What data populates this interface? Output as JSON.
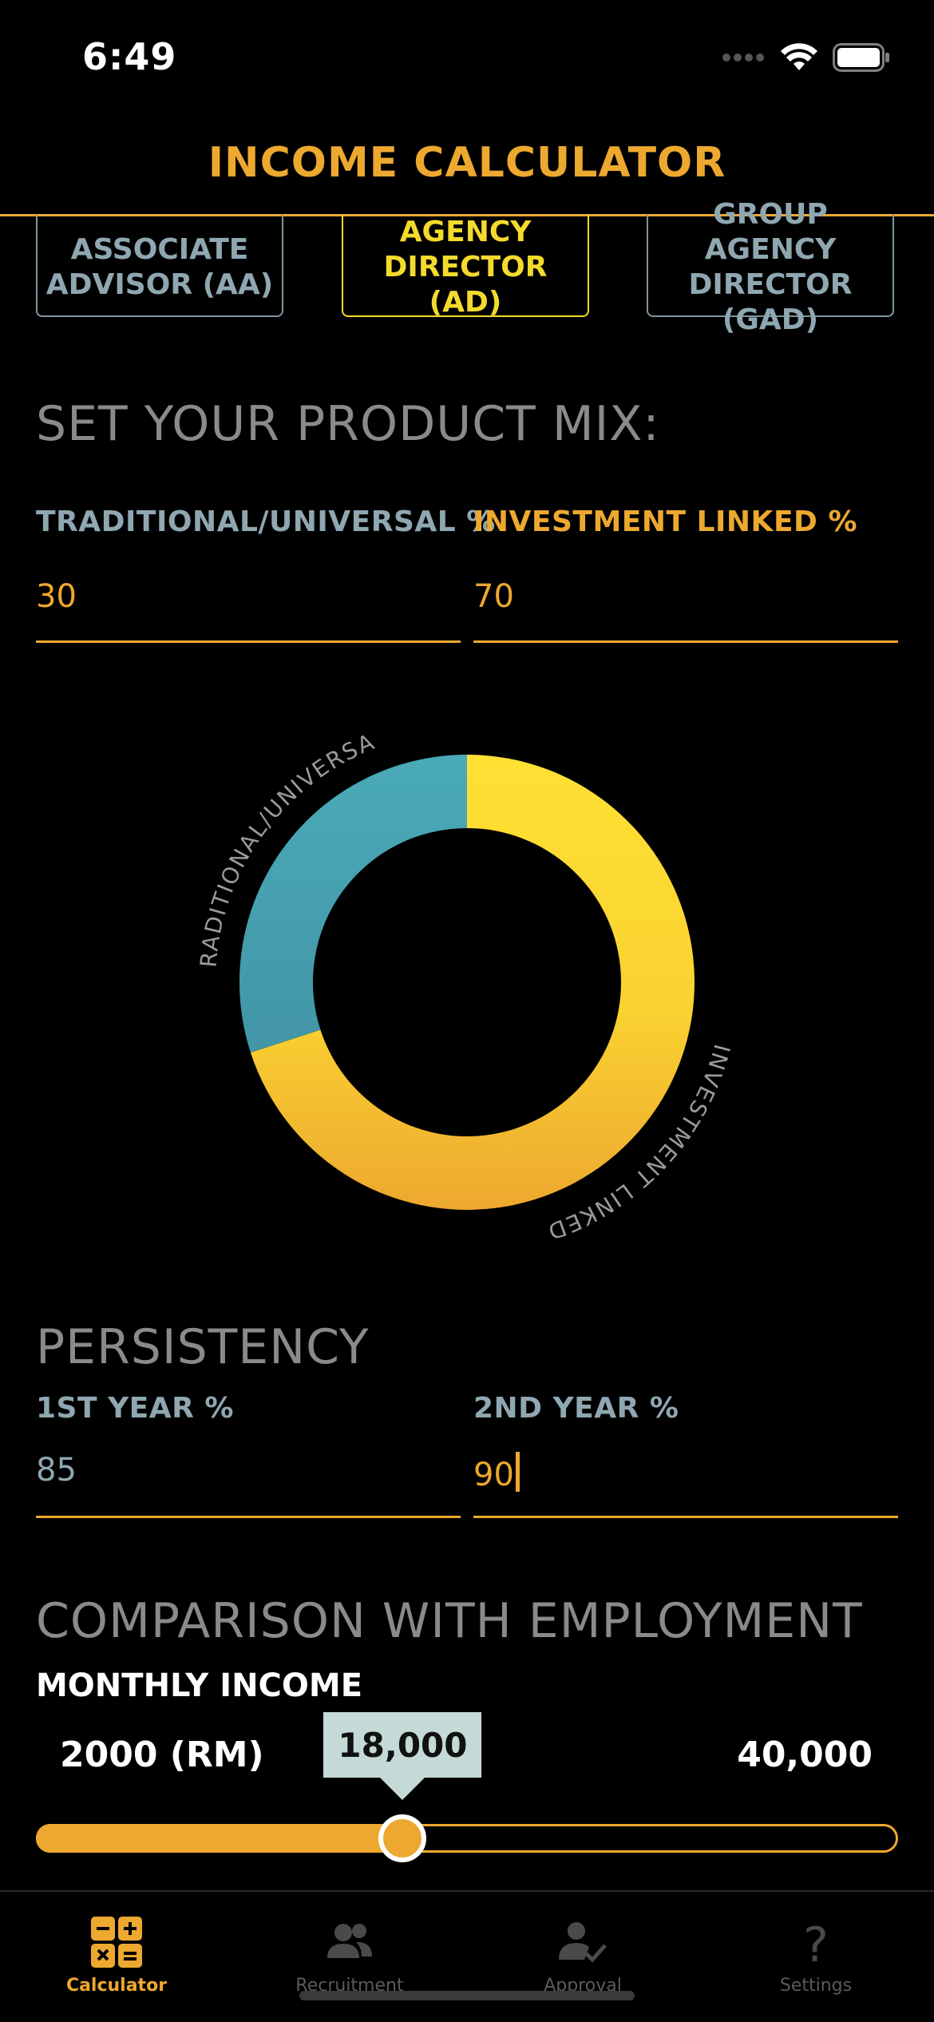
{
  "status_bar": {
    "time": "6:49"
  },
  "header": {
    "title": "INCOME CALCULATOR"
  },
  "roles": [
    {
      "line1": "ASSOCIATE",
      "line2": "ADVISOR (AA)",
      "active": false
    },
    {
      "line1": "AGENCY",
      "line2": "DIRECTOR (AD)",
      "active": true
    },
    {
      "line1": "GROUP AGENCY",
      "line2": "DIRECTOR (GAD)",
      "active": false
    }
  ],
  "product_mix": {
    "heading": "SET YOUR PRODUCT MIX:",
    "traditional_label": "TRADITIONAL/UNIVERSAL %",
    "traditional_value": "30",
    "investment_label": "INVESTMENT LINKED %",
    "investment_value": "70"
  },
  "chart_data": {
    "type": "pie",
    "donut": true,
    "categories": [
      "TRADITIONAL/UNIVERSAL",
      "INVESTMENT LINKED"
    ],
    "values": [
      30,
      70
    ],
    "colors": [
      "#47A6B5",
      "#F6C52B"
    ],
    "title": ""
  },
  "persistency": {
    "heading": "PERSISTENCY",
    "year1_label": "1ST YEAR %",
    "year1_value": "85",
    "year2_label": "2ND YEAR %",
    "year2_value": "90"
  },
  "comparison": {
    "heading": "COMPARISON WITH EMPLOYMENT",
    "income_label": "MONTHLY INCOME",
    "min_label": "2000 (RM)",
    "max_label": "40,000",
    "current_display": "18,000",
    "min_value": 2000,
    "max_value": 40000,
    "current_value": 18000
  },
  "tabbar": {
    "items": [
      {
        "label": "Calculator",
        "icon": "calculator-icon",
        "active": true
      },
      {
        "label": "Recruitment",
        "icon": "people-icon",
        "active": false
      },
      {
        "label": "Approval",
        "icon": "approval-icon",
        "active": false
      },
      {
        "label": "Settings",
        "icon": "help-icon",
        "active": false
      }
    ]
  },
  "colors": {
    "accent": "#EDA82F",
    "teal_label": "#8FA7B1",
    "yellow": "#F4DA2C"
  }
}
